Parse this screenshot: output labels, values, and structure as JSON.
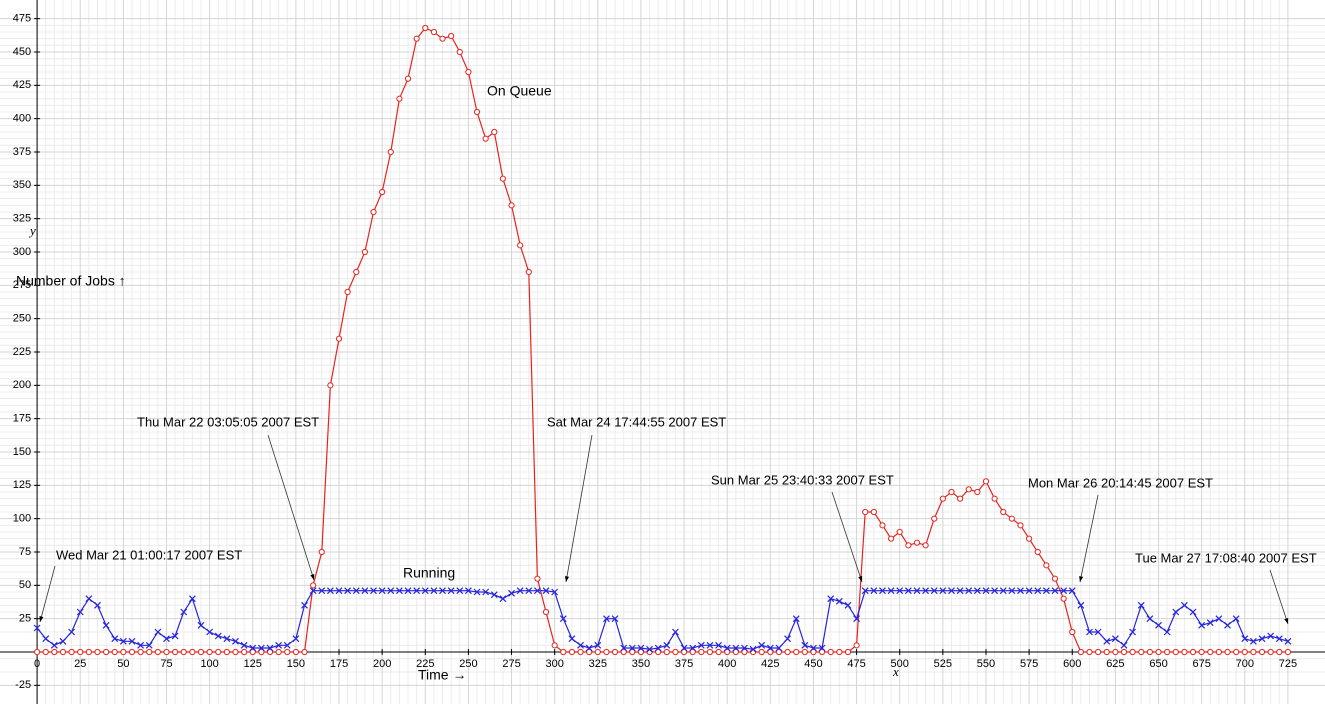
{
  "chart_data": {
    "type": "line",
    "y_label": "Number of Jobs ↑",
    "x_label": "Time →",
    "x_axis_symbol": "x",
    "y_axis_symbol": "y",
    "annotations": [
      "Wed Mar 21 01:00:17 2007 EST",
      "Thu Mar 22 03:05:05 2007 EST",
      "Sat Mar 24 17:44:55 2007 EST",
      "Sun Mar 25 23:40:33 2007 EST",
      "Mon Mar 26 20:14:45 2007 EST",
      "Tue Mar 27 17:08:40 2007 EST"
    ],
    "x": [
      0,
      5,
      10,
      15,
      20,
      25,
      30,
      35,
      40,
      45,
      50,
      55,
      60,
      65,
      70,
      75,
      80,
      85,
      90,
      95,
      100,
      105,
      110,
      115,
      120,
      125,
      130,
      135,
      140,
      145,
      150,
      155,
      160,
      165,
      170,
      175,
      180,
      185,
      190,
      195,
      200,
      205,
      210,
      215,
      220,
      225,
      230,
      235,
      240,
      245,
      250,
      255,
      260,
      265,
      270,
      275,
      280,
      285,
      290,
      295,
      300,
      305,
      310,
      315,
      320,
      325,
      330,
      335,
      340,
      345,
      350,
      355,
      360,
      365,
      370,
      375,
      380,
      385,
      390,
      395,
      400,
      405,
      410,
      415,
      420,
      425,
      430,
      435,
      440,
      445,
      450,
      455,
      460,
      465,
      470,
      475,
      480,
      485,
      490,
      495,
      500,
      505,
      510,
      515,
      520,
      525,
      530,
      535,
      540,
      545,
      550,
      555,
      560,
      565,
      570,
      575,
      580,
      585,
      590,
      595,
      600,
      605,
      610,
      615,
      620,
      625,
      630,
      635,
      640,
      645,
      650,
      655,
      660,
      665,
      670,
      675,
      680,
      685,
      690,
      695,
      700,
      705,
      710,
      715,
      720,
      725
    ],
    "series": [
      {
        "name": "On Queue",
        "color": "#e8231c",
        "marker": "circle",
        "values": [
          0,
          0,
          0,
          0,
          0,
          0,
          0,
          0,
          0,
          0,
          0,
          0,
          0,
          0,
          0,
          0,
          0,
          0,
          0,
          0,
          0,
          0,
          0,
          0,
          0,
          0,
          0,
          0,
          0,
          0,
          0,
          0,
          50,
          75,
          200,
          235,
          270,
          285,
          300,
          330,
          345,
          375,
          415,
          430,
          460,
          468,
          465,
          460,
          462,
          450,
          435,
          405,
          385,
          390,
          355,
          335,
          305,
          285,
          55,
          30,
          5,
          0,
          0,
          0,
          0,
          0,
          0,
          0,
          0,
          0,
          0,
          0,
          0,
          0,
          0,
          0,
          0,
          0,
          0,
          0,
          0,
          0,
          0,
          0,
          0,
          0,
          0,
          0,
          0,
          0,
          0,
          0,
          0,
          0,
          0,
          5,
          105,
          105,
          95,
          85,
          90,
          80,
          82,
          80,
          100,
          115,
          120,
          115,
          122,
          120,
          128,
          115,
          105,
          100,
          95,
          85,
          75,
          65,
          55,
          40,
          15,
          0,
          0,
          0,
          0,
          0,
          0,
          0,
          0,
          0,
          0,
          0,
          0,
          0,
          0,
          0,
          0,
          0,
          0,
          0,
          0,
          0,
          0,
          0,
          0,
          0
        ]
      },
      {
        "name": "Running",
        "color": "#2424e0",
        "marker": "cross",
        "values": [
          18,
          10,
          5,
          8,
          15,
          30,
          40,
          35,
          20,
          10,
          8,
          8,
          5,
          5,
          15,
          10,
          12,
          30,
          40,
          20,
          15,
          12,
          10,
          8,
          5,
          3,
          3,
          3,
          5,
          5,
          10,
          35,
          46,
          46,
          46,
          46,
          46,
          46,
          46,
          46,
          46,
          46,
          46,
          46,
          46,
          46,
          46,
          46,
          46,
          46,
          46,
          45,
          45,
          43,
          40,
          44,
          46,
          46,
          46,
          46,
          45,
          25,
          10,
          5,
          3,
          5,
          25,
          25,
          3,
          3,
          3,
          2,
          3,
          5,
          15,
          3,
          3,
          5,
          5,
          5,
          3,
          3,
          3,
          2,
          5,
          3,
          3,
          10,
          25,
          5,
          3,
          3,
          40,
          38,
          35,
          25,
          46,
          46,
          46,
          46,
          46,
          46,
          46,
          46,
          46,
          46,
          46,
          46,
          46,
          46,
          46,
          46,
          46,
          46,
          46,
          46,
          46,
          46,
          46,
          46,
          46,
          35,
          15,
          15,
          8,
          10,
          5,
          15,
          35,
          25,
          20,
          15,
          30,
          35,
          30,
          20,
          22,
          25,
          20,
          25,
          10,
          8,
          10,
          12,
          10,
          8
        ]
      }
    ],
    "xlim": [
      -21.5,
      746.5
    ],
    "ylim": [
      -39,
      489
    ],
    "xticks": [
      0,
      25,
      50,
      75,
      100,
      125,
      150,
      175,
      200,
      225,
      250,
      275,
      300,
      325,
      350,
      375,
      400,
      425,
      450,
      475,
      500,
      525,
      550,
      575,
      600,
      625,
      650,
      675,
      700,
      725
    ],
    "yticks": [
      -25,
      25,
      50,
      75,
      100,
      125,
      150,
      175,
      200,
      225,
      250,
      275,
      300,
      325,
      350,
      375,
      400,
      425,
      450,
      475
    ],
    "grid": true
  }
}
